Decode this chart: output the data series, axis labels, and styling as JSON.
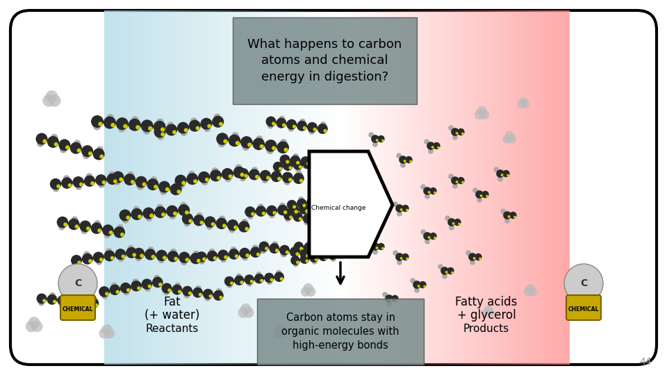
{
  "title": "What happens to carbon\natoms and chemical\nenergy in digestion?",
  "title_box_color": "#7a8a8a",
  "title_text_color": "#000000",
  "center_text": "Carbon atoms stay in\norganic molecules with\nhigh-energy bonds",
  "center_box_color": "#7a8a8a",
  "center_text_color": "#000000",
  "left_label_line1": "Fat",
  "left_label_line2": "(+ water)",
  "left_label_line3": "Reactants",
  "right_label_line1": "Fatty acids",
  "right_label_line2": "+ glycerol",
  "right_label_line3": "Products",
  "chemical_change_label": "Chemical change",
  "bg_color": "#ffffff",
  "outer_box_color": "#000000",
  "page_number": "44",
  "arrow_color": "#000000",
  "mol_dark": "#2a2a2a",
  "mol_gray": "#aaaaaa",
  "mol_yellow": "#cccc00",
  "mol_lgray": "#bbbbbb"
}
